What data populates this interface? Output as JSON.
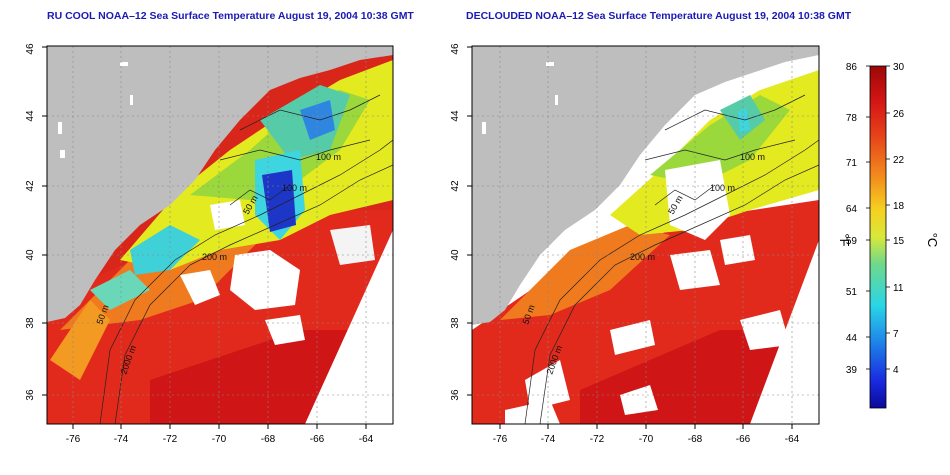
{
  "maps": [
    {
      "title": "RU COOL NOAA–12 Sea Surface Temperature August 19, 2004 10:38 GMT",
      "lat_ticks": [
        "36",
        "38",
        "40",
        "42",
        "44",
        "46"
      ],
      "lon_ticks": [
        "-76",
        "-74",
        "-72",
        "-70",
        "-68",
        "-66",
        "-64"
      ],
      "contour_labels": [
        "100 m",
        "100 m",
        "50 m",
        "200 m",
        "50 m",
        "2000 m"
      ]
    },
    {
      "title": "DECLOUDED NOAA–12 Sea Surface Temperature August 19, 2004 10:38 GMT",
      "lat_ticks": [
        "36",
        "38",
        "40",
        "42",
        "44",
        "46"
      ],
      "lon_ticks": [
        "-76",
        "-74",
        "-72",
        "-70",
        "-68",
        "-66",
        "-64"
      ],
      "contour_labels": [
        "100 m",
        "100 m",
        "50 m",
        "200 m",
        "50 m",
        "2000 m"
      ]
    }
  ],
  "colorbar": {
    "f_label": "°F",
    "c_label": "°C",
    "f_ticks": [
      "86",
      "78",
      "71",
      "64",
      "59",
      "51",
      "44",
      "39"
    ],
    "c_ticks": [
      "30",
      "26",
      "22",
      "18",
      "15",
      "11",
      "7",
      "4"
    ]
  },
  "colors": {
    "land": "#bebebe",
    "cloud": "#ffffff",
    "warm": "#e8291c",
    "hot": "#cc0f0f",
    "mid": "#f08a1e",
    "cool_yellow": "#e4ea20",
    "green": "#7fd24a",
    "cyan": "#3dd6e0",
    "cold_blue": "#1d36c8",
    "title": "#1a1ab4"
  }
}
